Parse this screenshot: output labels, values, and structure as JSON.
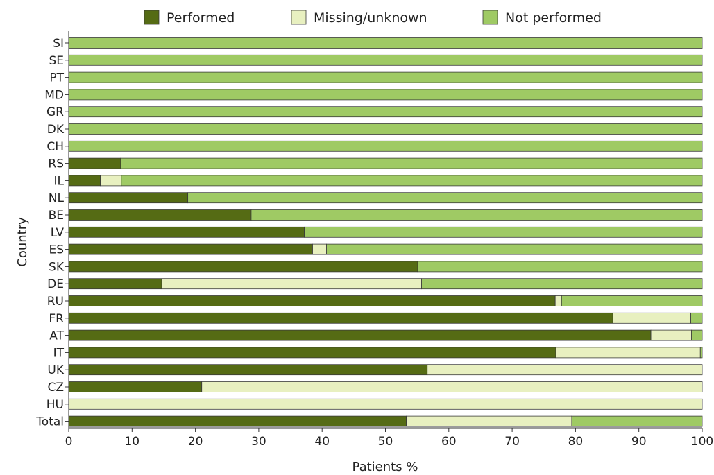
{
  "chart_data": {
    "type": "bar",
    "orientation": "horizontal",
    "stacked": true,
    "title": "",
    "xlabel": "Patients %",
    "ylabel": "Country",
    "xlim": [
      0,
      100
    ],
    "xticks": [
      0,
      10,
      20,
      30,
      40,
      50,
      60,
      70,
      80,
      90,
      100
    ],
    "grid": false,
    "legend_position": "top",
    "categories": [
      "SI",
      "SE",
      "PT",
      "MD",
      "GR",
      "DK",
      "CH",
      "RS",
      "IL",
      "NL",
      "BE",
      "LV",
      "ES",
      "SK",
      "DE",
      "RU",
      "FR",
      "AT",
      "IT",
      "UK",
      "CZ",
      "HU",
      "Total"
    ],
    "series": [
      {
        "name": "Performed",
        "color": "#556b14",
        "values": [
          0,
          0,
          0,
          0,
          0,
          0,
          0,
          8.2,
          5.0,
          18.8,
          28.8,
          37.2,
          38.5,
          55.1,
          14.7,
          76.8,
          85.9,
          91.9,
          76.9,
          56.6,
          21.0,
          0,
          53.3
        ]
      },
      {
        "name": "Missing/unknown",
        "color": "#e8f0c0",
        "values": [
          0,
          0,
          0,
          0,
          0,
          0,
          0,
          0,
          3.3,
          0,
          0,
          0,
          2.2,
          0,
          41.0,
          1.0,
          12.3,
          6.4,
          22.8,
          43.4,
          79.0,
          100,
          26.1
        ]
      },
      {
        "name": "Not performed",
        "color": "#9fca64",
        "values": [
          100,
          100,
          100,
          100,
          100,
          100,
          100,
          91.8,
          91.7,
          81.2,
          71.2,
          62.8,
          59.3,
          44.9,
          44.3,
          22.2,
          1.8,
          1.7,
          0.3,
          0,
          0,
          0,
          20.6
        ]
      }
    ]
  }
}
